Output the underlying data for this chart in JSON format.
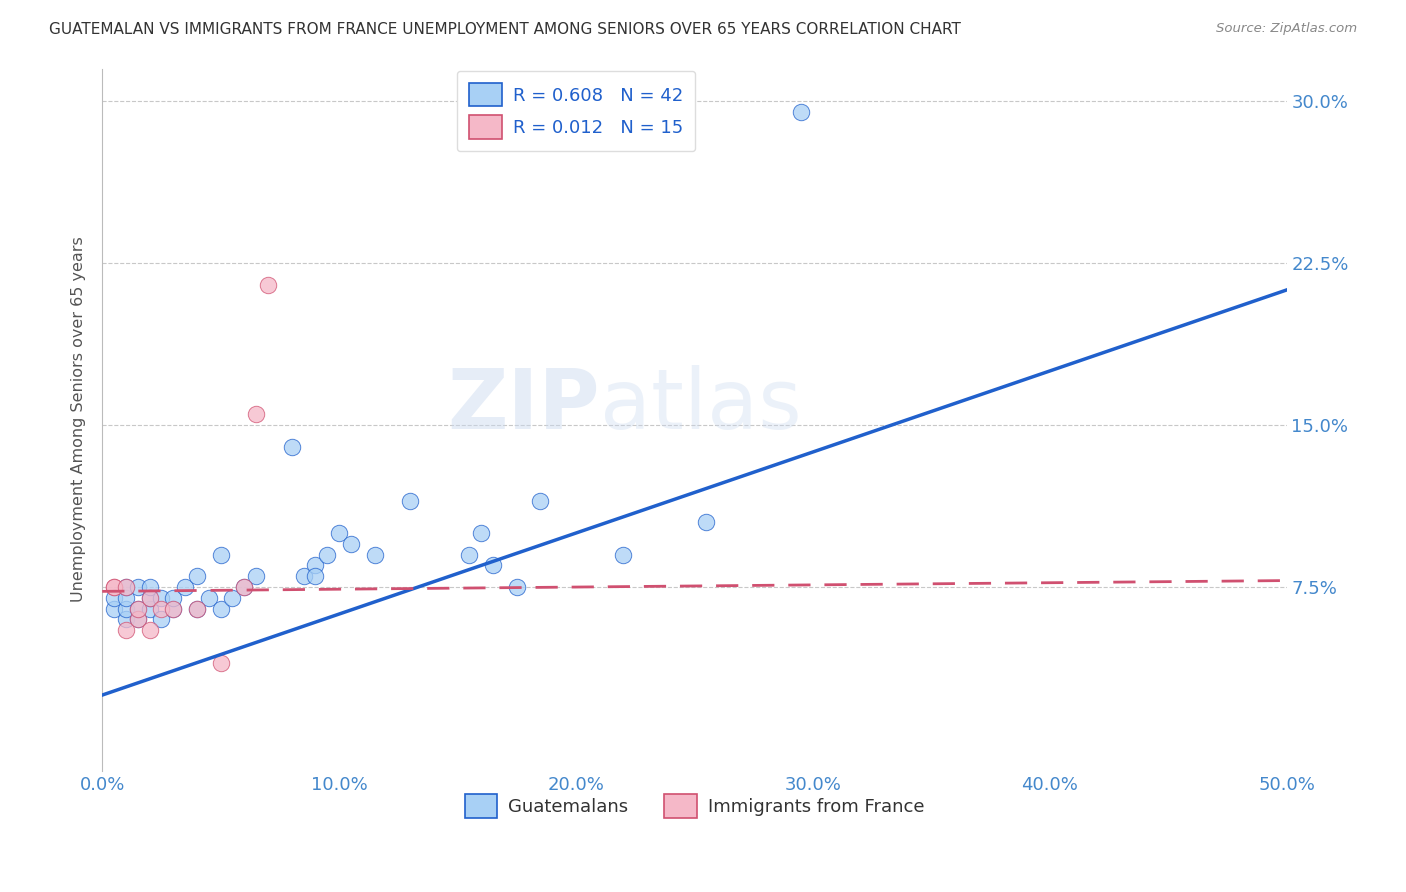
{
  "title": "GUATEMALAN VS IMMIGRANTS FROM FRANCE UNEMPLOYMENT AMONG SENIORS OVER 65 YEARS CORRELATION CHART",
  "source": "Source: ZipAtlas.com",
  "xlabel_ticks": [
    "0.0%",
    "10.0%",
    "20.0%",
    "30.0%",
    "40.0%",
    "50.0%"
  ],
  "ylabel_ticks": [
    "7.5%",
    "15.0%",
    "22.5%",
    "30.0%"
  ],
  "ylabel_label": "Unemployment Among Seniors over 65 years",
  "xlim": [
    0.0,
    0.5
  ],
  "ylim": [
    -0.01,
    0.315
  ],
  "blue_x": [
    0.005,
    0.005,
    0.01,
    0.01,
    0.01,
    0.01,
    0.015,
    0.015,
    0.015,
    0.02,
    0.02,
    0.02,
    0.025,
    0.025,
    0.03,
    0.03,
    0.035,
    0.04,
    0.04,
    0.045,
    0.05,
    0.05,
    0.055,
    0.06,
    0.065,
    0.08,
    0.085,
    0.09,
    0.09,
    0.095,
    0.1,
    0.105,
    0.115,
    0.13,
    0.155,
    0.16,
    0.165,
    0.175,
    0.185,
    0.22,
    0.255,
    0.295
  ],
  "blue_y": [
    0.065,
    0.07,
    0.06,
    0.065,
    0.07,
    0.075,
    0.06,
    0.065,
    0.075,
    0.065,
    0.07,
    0.075,
    0.06,
    0.07,
    0.065,
    0.07,
    0.075,
    0.065,
    0.08,
    0.07,
    0.065,
    0.09,
    0.07,
    0.075,
    0.08,
    0.14,
    0.08,
    0.085,
    0.08,
    0.09,
    0.1,
    0.095,
    0.09,
    0.115,
    0.09,
    0.1,
    0.085,
    0.075,
    0.115,
    0.09,
    0.105,
    0.295
  ],
  "pink_x": [
    0.005,
    0.005,
    0.01,
    0.01,
    0.015,
    0.015,
    0.02,
    0.02,
    0.025,
    0.03,
    0.04,
    0.05,
    0.06,
    0.065,
    0.07
  ],
  "pink_y": [
    0.075,
    0.075,
    0.055,
    0.075,
    0.06,
    0.065,
    0.055,
    0.07,
    0.065,
    0.065,
    0.065,
    0.04,
    0.075,
    0.155,
    0.215
  ],
  "blue_R": "0.608",
  "blue_N": "42",
  "pink_R": "0.012",
  "pink_N": "15",
  "blue_color": "#A8D0F5",
  "pink_color": "#F5B8C8",
  "blue_line_color": "#2060CC",
  "pink_line_color": "#D05070",
  "legend_blue_label": "Guatemalans",
  "legend_pink_label": "Immigrants from France",
  "watermark_line1": "ZIP",
  "watermark_line2": "atlas",
  "title_color": "#333333",
  "source_color": "#888888",
  "axis_label_color": "#555555",
  "tick_color": "#4488CC",
  "grid_color": "#C8C8C8",
  "blue_line_y_intercept": 0.025,
  "blue_line_slope": 0.375,
  "pink_line_y_intercept": 0.073,
  "pink_line_slope": 0.01
}
